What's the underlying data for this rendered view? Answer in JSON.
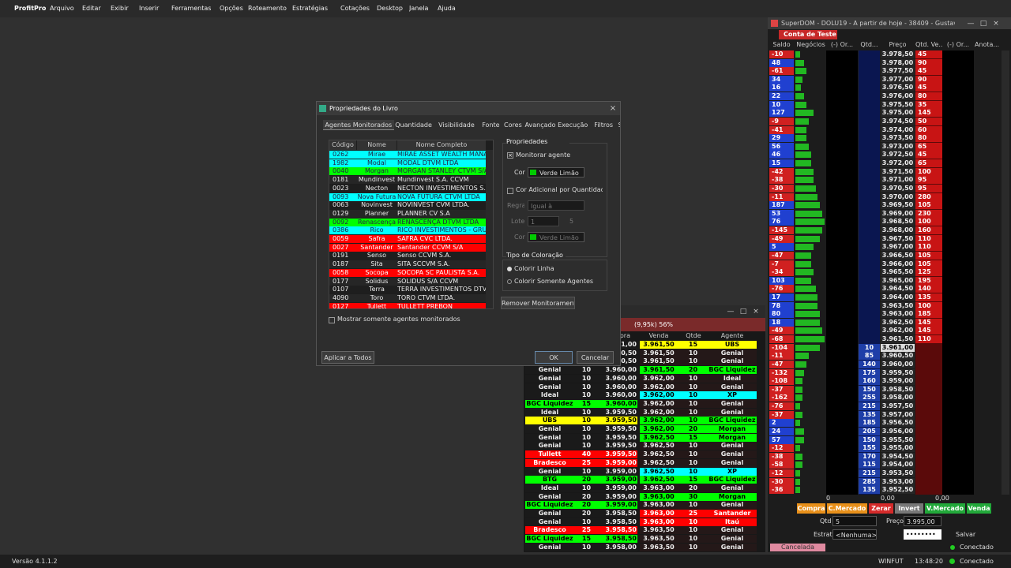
{
  "menubar": {
    "app": "ProfitPro",
    "items": [
      "Arquivo",
      "Editar",
      "Exibir",
      "Inserir",
      "Ferramentas",
      "Opções",
      "Roteamento",
      "Estratégias",
      "Cotações",
      "Desktop",
      "Janela",
      "Ajuda"
    ]
  },
  "dialog": {
    "title": "Propriedades do Livro",
    "tabs": [
      "Agentes Monitorados",
      "Quantidade",
      "Visibilidade",
      "Fonte",
      "Cores",
      "Avançado",
      "Execução",
      "Filtros",
      "SuperDOM"
    ],
    "columns": [
      "Código",
      "Nome",
      "Nome Completo"
    ],
    "agents": [
      [
        "0262",
        "Mirae",
        "MIRAE ASSET WEALTH MANAGEM",
        "#00ffff"
      ],
      [
        "1982",
        "Modal",
        "MODAL DTVM LTDA",
        "#00ffff"
      ],
      [
        "0040",
        "Morgan",
        "MORGAN STANLEY CTVM S/A",
        "#00ff00"
      ],
      [
        "0181",
        "Mundinvest",
        "Mundinvest S.A. CCVM",
        null
      ],
      [
        "0023",
        "Necton",
        "NECTON INVESTIMENTOS S.A. CVM",
        null
      ],
      [
        "0093",
        "Nova Futura",
        "NOVA FUTURA CTVM LTDA",
        "#00ffff"
      ],
      [
        "0063",
        "Novinvest",
        "NOVINVEST CVM LTDA.",
        null
      ],
      [
        "0129",
        "Planner",
        "PLANNER CV S.A",
        null
      ],
      [
        "0092",
        "Renascença",
        "RENASCENÇA DTVM LTDA",
        "#00ff00"
      ],
      [
        "0386",
        "Rico",
        "RICO INVESTIMENTOS - GRUPO XP",
        "#00ffff"
      ],
      [
        "0059",
        "Safra",
        "SAFRA CVC LTDA.",
        "#ff0000"
      ],
      [
        "0027",
        "Santander",
        "Santander CCVM S/A",
        "#ff0000"
      ],
      [
        "0191",
        "Senso",
        "Senso CCVM S.A.",
        null
      ],
      [
        "0187",
        "Sita",
        "SITA SCCVM S.A.",
        null
      ],
      [
        "0058",
        "Socopa",
        "SOCOPA SC PAULISTA S.A.",
        "#ff0000"
      ],
      [
        "0177",
        "Solidus",
        "SOLIDUS S/A CCVM",
        null
      ],
      [
        "0107",
        "Terra",
        "TERRA INVESTIMENTOS DTVM LTDA",
        null
      ],
      [
        "4090",
        "Toro",
        "TORO CTVM LTDA.",
        null
      ],
      [
        "0127",
        "Tullett",
        "TULLETT PREBON",
        "#ff0000"
      ]
    ],
    "properties": {
      "heading": "Propriedades",
      "monitor": "Monitorar agente",
      "color_label": "Cor",
      "color_value": "Verde Limão",
      "extra": "Cor Adicional por Quantidade",
      "rule_label": "Regra",
      "rule_value": "Igual à",
      "lot_label": "Lote",
      "lot_value": "1",
      "lot_extra": "5",
      "color2_label": "Cor",
      "color2_value": "Verde Limão",
      "coloring_heading": "Tipo de Coloração",
      "color_line": "Colorir Linha",
      "color_agents": "Colorir Somente Agentes",
      "remove": "Remover Monitoramento"
    },
    "show_only": "Mostrar somente agentes monitorados",
    "apply_all": "Aplicar a Todos",
    "ok": "OK",
    "cancel": "Cancelar"
  },
  "book": {
    "summary": "(9,95k) 56%",
    "columns": [
      "Compra",
      "Venda",
      "Qtde",
      "Agente"
    ],
    "agent_colors": {
      "UBS": "#ffff00",
      "BGC Liquidez": "#00ff00",
      "XP": "#00ffff",
      "Morgan": "#00ff00",
      "BTG": "#00ff00",
      "Tullett": "#ff0000",
      "Bradesco": "#ff0000",
      "Santander": "#ff0000",
      "Itaú": "#ff0000"
    },
    "rows": [
      [
        null,
        null,
        "3.961,00",
        "3.961,50",
        15,
        "UBS"
      ],
      [
        null,
        null,
        "3.960,50",
        "3.961,50",
        10,
        "Genial"
      ],
      [
        null,
        null,
        "3.960,50",
        "3.961,50",
        10,
        "Genial"
      ],
      [
        "Genial",
        10,
        "3.960,00",
        "3.961,50",
        20,
        "BGC Liquidez"
      ],
      [
        "Genial",
        10,
        "3.960,00",
        "3.962,00",
        10,
        "Ideal"
      ],
      [
        "Genial",
        10,
        "3.960,00",
        "3.962,00",
        10,
        "Genial"
      ],
      [
        "Ideal",
        10,
        "3.960,00",
        "3.962,00",
        10,
        "XP"
      ],
      [
        "BGC Liquidez",
        15,
        "3.960,00",
        "3.962,00",
        10,
        "Genial"
      ],
      [
        "Ideal",
        10,
        "3.959,50",
        "3.962,00",
        10,
        "Genial"
      ],
      [
        "UBS",
        10,
        "3.959,50",
        "3.962,00",
        10,
        "BGC Liquidez"
      ],
      [
        "Genial",
        10,
        "3.959,50",
        "3.962,00",
        20,
        "Morgan"
      ],
      [
        "Genial",
        10,
        "3.959,50",
        "3.962,50",
        15,
        "Morgan"
      ],
      [
        "Genial",
        10,
        "3.959,50",
        "3.962,50",
        10,
        "Genial"
      ],
      [
        "Tullett",
        40,
        "3.959,50",
        "3.962,50",
        10,
        "Genial"
      ],
      [
        "Bradesco",
        25,
        "3.959,00",
        "3.962,50",
        10,
        "Genial"
      ],
      [
        "Genial",
        10,
        "3.959,00",
        "3.962,50",
        10,
        "XP"
      ],
      [
        "BTG",
        20,
        "3.959,00",
        "3.962,50",
        15,
        "BGC Liquidez"
      ],
      [
        "Ideal",
        10,
        "3.959,00",
        "3.963,00",
        20,
        "Genial"
      ],
      [
        "Genial",
        20,
        "3.959,00",
        "3.963,00",
        30,
        "Morgan"
      ],
      [
        "BGC Liquidez",
        20,
        "3.959,00",
        "3.963,00",
        10,
        "Genial"
      ],
      [
        "Genial",
        20,
        "3.958,50",
        "3.963,00",
        25,
        "Santander"
      ],
      [
        "Genial",
        10,
        "3.958,50",
        "3.963,00",
        10,
        "Itaú"
      ],
      [
        "Bradesco",
        25,
        "3.958,50",
        "3.963,50",
        10,
        "Genial"
      ],
      [
        "BGC Liquidez",
        15,
        "3.958,50",
        "3.963,50",
        10,
        "Genial"
      ],
      [
        "Genial",
        10,
        "3.958,00",
        "3.963,50",
        10,
        "Genial"
      ]
    ]
  },
  "superdom": {
    "title": "SuperDOM - DOLU19 - A partir de hoje - 38409 - Gustavo",
    "account": "Conta de Teste",
    "columns": [
      "Saldo",
      "Negócios",
      "(-) Or...",
      "Qtd...",
      "Preço",
      "Qtd. Ve...",
      "(-) Or...",
      "Anota..."
    ],
    "rows": [
      [
        -10,
        4,
        "3.978,50",
        null,
        45
      ],
      [
        48,
        8,
        "3.978,00",
        null,
        90
      ],
      [
        -61,
        10,
        "3.977,50",
        null,
        45
      ],
      [
        34,
        6,
        "3.977,00",
        null,
        90
      ],
      [
        16,
        5,
        "3.976,50",
        null,
        45
      ],
      [
        22,
        8,
        "3.976,00",
        null,
        80
      ],
      [
        10,
        10,
        "3.975,50",
        null,
        35
      ],
      [
        127,
        16,
        "3.975,00",
        null,
        145
      ],
      [
        -9,
        12,
        "3.974,50",
        null,
        50
      ],
      [
        -41,
        10,
        "3.974,00",
        null,
        60
      ],
      [
        29,
        10,
        "3.973,50",
        null,
        80
      ],
      [
        56,
        12,
        "3.973,00",
        null,
        65
      ],
      [
        46,
        14,
        "3.972,50",
        null,
        45
      ],
      [
        15,
        14,
        "3.972,00",
        null,
        65
      ],
      [
        -42,
        16,
        "3.971,50",
        null,
        100
      ],
      [
        -38,
        16,
        "3.971,00",
        null,
        95
      ],
      [
        -30,
        18,
        "3.970,50",
        null,
        95
      ],
      [
        -11,
        20,
        "3.970,00",
        null,
        280
      ],
      [
        187,
        22,
        "3.969,50",
        null,
        105
      ],
      [
        53,
        24,
        "3.969,00",
        null,
        230
      ],
      [
        76,
        26,
        "3.968,50",
        null,
        100
      ],
      [
        -145,
        24,
        "3.968,00",
        null,
        160
      ],
      [
        -49,
        22,
        "3.967,50",
        null,
        110
      ],
      [
        5,
        16,
        "3.967,00",
        null,
        110
      ],
      [
        -47,
        14,
        "3.966,50",
        null,
        105
      ],
      [
        -7,
        14,
        "3.966,00",
        null,
        105
      ],
      [
        -34,
        16,
        "3.965,50",
        null,
        125
      ],
      [
        103,
        14,
        "3.965,00",
        null,
        195
      ],
      [
        -76,
        18,
        "3.964,50",
        null,
        140
      ],
      [
        17,
        20,
        "3.964,00",
        null,
        135
      ],
      [
        78,
        20,
        "3.963,50",
        null,
        100
      ],
      [
        80,
        22,
        "3.963,00",
        null,
        185
      ],
      [
        18,
        22,
        "3.962,50",
        null,
        145
      ],
      [
        -49,
        24,
        "3.962,00",
        null,
        145
      ],
      [
        -68,
        26,
        "3.961,50",
        null,
        110
      ],
      [
        -104,
        22,
        "3.961,00",
        10,
        null
      ],
      [
        -11,
        12,
        "3.960,50",
        85,
        null
      ],
      [
        -47,
        10,
        "3.960,00",
        140,
        null
      ],
      [
        -132,
        8,
        "3.959,50",
        175,
        null
      ],
      [
        -108,
        6,
        "3.959,00",
        160,
        null
      ],
      [
        -37,
        6,
        "3.958,50",
        150,
        null
      ],
      [
        -162,
        6,
        "3.958,00",
        255,
        null
      ],
      [
        -76,
        4,
        "3.957,50",
        215,
        null
      ],
      [
        -37,
        6,
        "3.957,00",
        135,
        null
      ],
      [
        2,
        4,
        "3.956,50",
        185,
        null
      ],
      [
        24,
        8,
        "3.956,00",
        205,
        null
      ],
      [
        57,
        8,
        "3.955,50",
        150,
        null
      ],
      [
        -12,
        4,
        "3.955,00",
        155,
        null
      ],
      [
        -38,
        6,
        "3.954,50",
        170,
        null
      ],
      [
        -58,
        6,
        "3.954,00",
        115,
        null
      ],
      [
        -12,
        4,
        "3.953,50",
        215,
        null
      ],
      [
        -30,
        4,
        "3.953,00",
        285,
        null
      ],
      [
        -36,
        4,
        "3.952,50",
        135,
        null
      ]
    ],
    "totals": [
      "0",
      "0,00",
      "0,00"
    ],
    "buttons": [
      "Compra",
      "C.Mercado",
      "Zerar",
      "Invert",
      "V.Mercado",
      "Venda"
    ],
    "qty_label": "Qtd",
    "qty": "5",
    "price_label": "Preço",
    "price": "3.995,00",
    "strategy_label": "Estrat.",
    "strategy": "<Nenhuma>",
    "password": "••••••••",
    "save": "Salvar",
    "order_status": "Cancelada",
    "connection": "Conectado"
  },
  "status": {
    "version": "Versão 4.1.1.2",
    "asset": "WINFUT",
    "time": "13:48:20",
    "connection": "Conectado"
  }
}
